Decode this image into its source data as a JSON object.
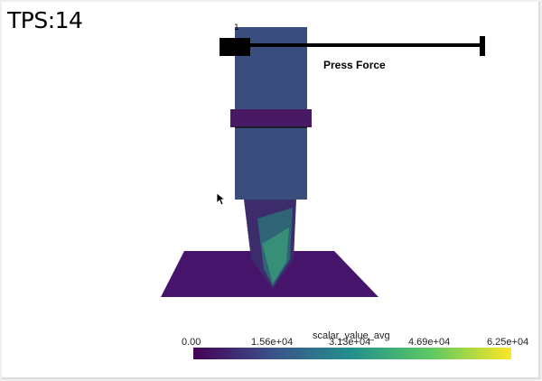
{
  "fps_label": "TPS:14",
  "slider": {
    "value_label": "1",
    "title": "Press Force"
  },
  "scene": {
    "press_color": "#3a4e7e",
    "collar_color": "#471a63",
    "plate_color": "#46146a",
    "punch_color": "#3d2c6c"
  },
  "colorbar": {
    "title": "scalar_value_avg",
    "ticks": [
      "0.00",
      "1.56e+04",
      "3.13e+04",
      "4.69e+04",
      "6.25e+04"
    ],
    "colormap": "viridis",
    "colors": [
      "#440154",
      "#3b528b",
      "#21918c",
      "#5ec962",
      "#fde725"
    ]
  }
}
